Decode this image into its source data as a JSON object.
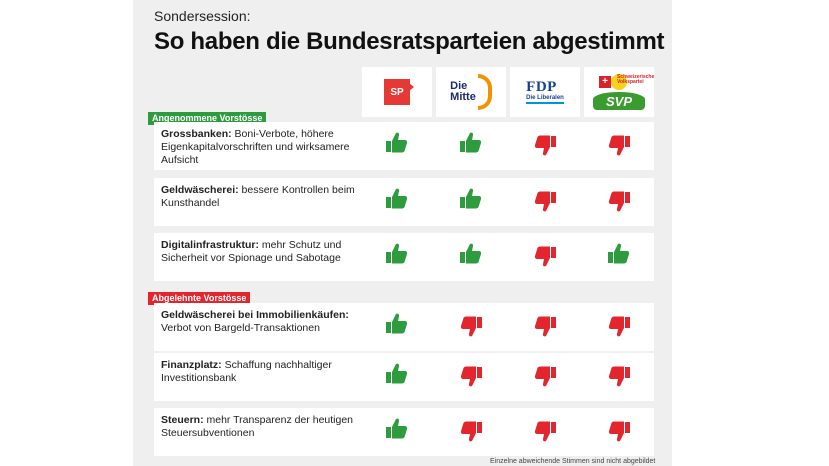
{
  "header": {
    "eyebrow": "Sondersession:",
    "title": "So haben die Bundesratsparteien abgestimmt"
  },
  "parties": [
    {
      "name": "SP",
      "logo_text": "SP",
      "color": "#e53935"
    },
    {
      "name": "Die Mitte",
      "logo_line1": "Die",
      "logo_line2": "Mitte",
      "color": "#f39200"
    },
    {
      "name": "FDP",
      "logo_text": "FDP",
      "logo_sub": "Die Liberalen",
      "color": "#164194"
    },
    {
      "name": "SVP",
      "logo_text": "SVP",
      "logo_tag1": "Schweizerische",
      "logo_tag2": "Volkspartei",
      "color": "#3a9b2f"
    }
  ],
  "colors": {
    "up": "#2e9b3e",
    "down": "#e3262d",
    "accepted": "#2e9b3e",
    "rejected": "#e3262d"
  },
  "sections": [
    {
      "label": "Angenommene Vorstösse",
      "kind": "accepted",
      "rows": [
        {
          "bold": "Grossbanken:",
          "text": " Boni-Verbote, höhere Eigenkapitalvorschriften und wirksamere Aufsicht",
          "votes": [
            "up",
            "up",
            "down",
            "down"
          ]
        },
        {
          "bold": "Geldwäscherei:",
          "text": " bessere Kontrollen beim Kunsthandel",
          "votes": [
            "up",
            "up",
            "down",
            "down"
          ]
        },
        {
          "bold": "Digitalinfrastruktur:",
          "text": " mehr Schutz und Sicherheit vor Spionage und Sabotage",
          "votes": [
            "up",
            "up",
            "down",
            "up"
          ]
        }
      ]
    },
    {
      "label": "Abgelehnte Vorstösse",
      "kind": "rejected",
      "rows": [
        {
          "bold": "Geldwäscherei bei Immobilienkäufen:",
          "text": " Verbot von Bargeld-Transaktionen",
          "votes": [
            "up",
            "down",
            "down",
            "down"
          ]
        },
        {
          "bold": "Finanzplatz:",
          "text": " Schaffung nachhaltiger Investitionsbank",
          "votes": [
            "up",
            "down",
            "down",
            "down"
          ]
        },
        {
          "bold": "Steuern:",
          "text": " mehr Transparenz der heutigen Steuersubventionen",
          "votes": [
            "up",
            "down",
            "down",
            "down"
          ]
        }
      ]
    }
  ],
  "vote_icons": {
    "up": "thumbs-up-icon",
    "down": "thumbs-down-icon"
  },
  "footnote": "Einzelne abweichende Stimmen sind nicht abgebildet"
}
